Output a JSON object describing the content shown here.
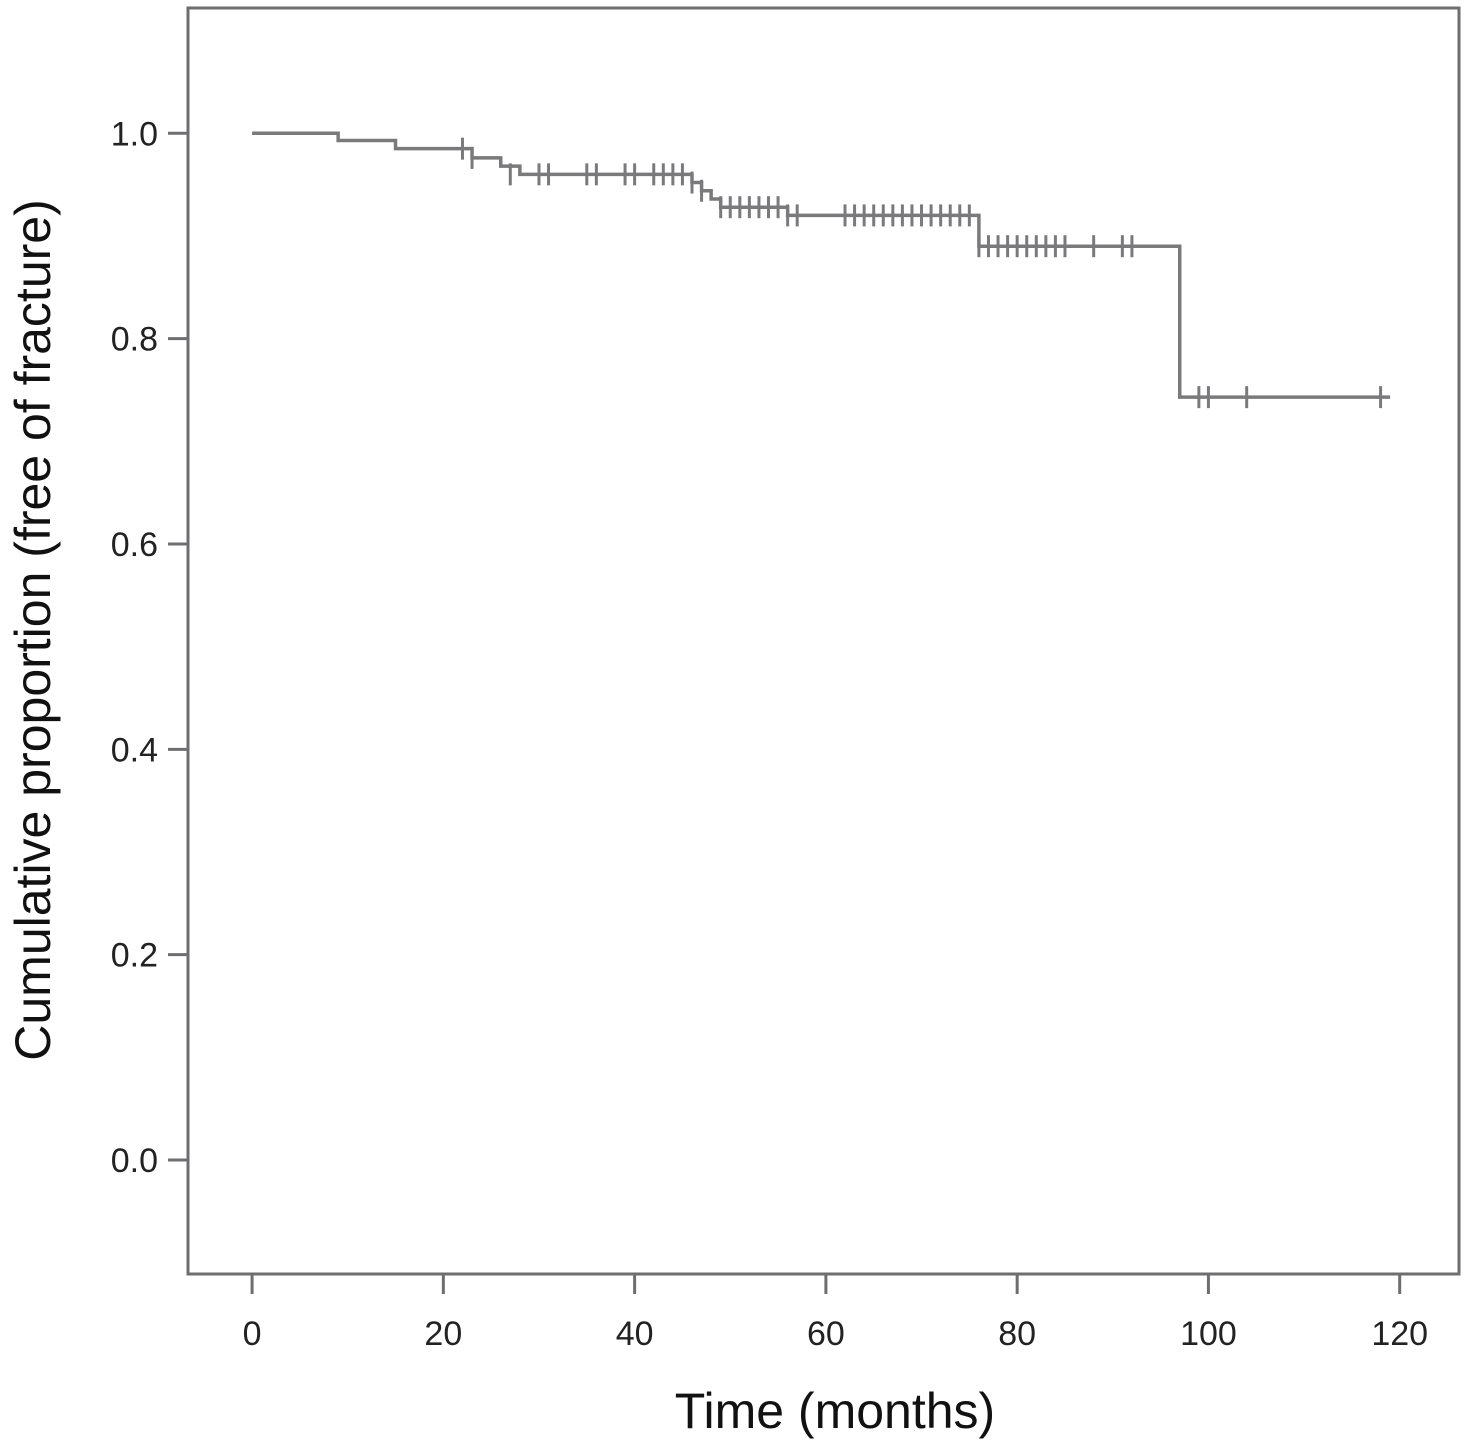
{
  "chart_data": {
    "type": "line",
    "title": "",
    "xlabel": "Time (months)",
    "ylabel": "Cumulative proportion (free of fracture)",
    "xlim": [
      -6.7,
      126.2
    ],
    "ylim": [
      -0.111,
      1.122
    ],
    "xticks": [
      0,
      20,
      40,
      60,
      80,
      100,
      120
    ],
    "yticks": [
      0.0,
      0.2,
      0.4,
      0.6,
      0.8,
      1.0
    ],
    "xtick_labels": [
      "0",
      "20",
      "40",
      "60",
      "80",
      "100",
      "120"
    ],
    "ytick_labels": [
      "0.0",
      "0.2",
      "0.4",
      "0.6",
      "0.8",
      "1.0"
    ],
    "grid": false,
    "line_color": "#7a7a7c",
    "series": [
      {
        "steps": [
          [
            0,
            1.0
          ],
          [
            9,
            0.993
          ],
          [
            15,
            0.985
          ],
          [
            23,
            0.976
          ],
          [
            26,
            0.968
          ],
          [
            28,
            0.96
          ],
          [
            46,
            0.952
          ],
          [
            47,
            0.944
          ],
          [
            48,
            0.936
          ],
          [
            49,
            0.928
          ],
          [
            56,
            0.92
          ],
          [
            76,
            0.89
          ],
          [
            97,
            0.743
          ],
          [
            119,
            0.743
          ]
        ],
        "censored": [
          [
            22,
            0.985
          ],
          [
            23,
            0.976
          ],
          [
            27,
            0.96
          ],
          [
            30,
            0.96
          ],
          [
            31,
            0.96
          ],
          [
            35,
            0.96
          ],
          [
            36,
            0.96
          ],
          [
            39,
            0.96
          ],
          [
            40,
            0.96
          ],
          [
            42,
            0.96
          ],
          [
            43,
            0.96
          ],
          [
            44,
            0.96
          ],
          [
            45,
            0.96
          ],
          [
            46,
            0.952
          ],
          [
            47,
            0.944
          ],
          [
            49,
            0.928
          ],
          [
            50,
            0.928
          ],
          [
            51,
            0.928
          ],
          [
            52,
            0.928
          ],
          [
            53,
            0.928
          ],
          [
            54,
            0.928
          ],
          [
            55,
            0.928
          ],
          [
            56,
            0.92
          ],
          [
            57,
            0.92
          ],
          [
            62,
            0.92
          ],
          [
            63,
            0.92
          ],
          [
            64,
            0.92
          ],
          [
            65,
            0.92
          ],
          [
            66,
            0.92
          ],
          [
            67,
            0.92
          ],
          [
            68,
            0.92
          ],
          [
            69,
            0.92
          ],
          [
            70,
            0.92
          ],
          [
            71,
            0.92
          ],
          [
            72,
            0.92
          ],
          [
            73,
            0.92
          ],
          [
            74,
            0.92
          ],
          [
            75,
            0.92
          ],
          [
            76,
            0.89
          ],
          [
            77,
            0.89
          ],
          [
            78,
            0.89
          ],
          [
            79,
            0.89
          ],
          [
            80,
            0.89
          ],
          [
            81,
            0.89
          ],
          [
            82,
            0.89
          ],
          [
            83,
            0.89
          ],
          [
            84,
            0.89
          ],
          [
            85,
            0.89
          ],
          [
            88,
            0.89
          ],
          [
            91,
            0.89
          ],
          [
            92,
            0.89
          ],
          [
            99,
            0.743
          ],
          [
            100,
            0.743
          ],
          [
            104,
            0.743
          ],
          [
            118,
            0.743
          ]
        ]
      }
    ]
  }
}
